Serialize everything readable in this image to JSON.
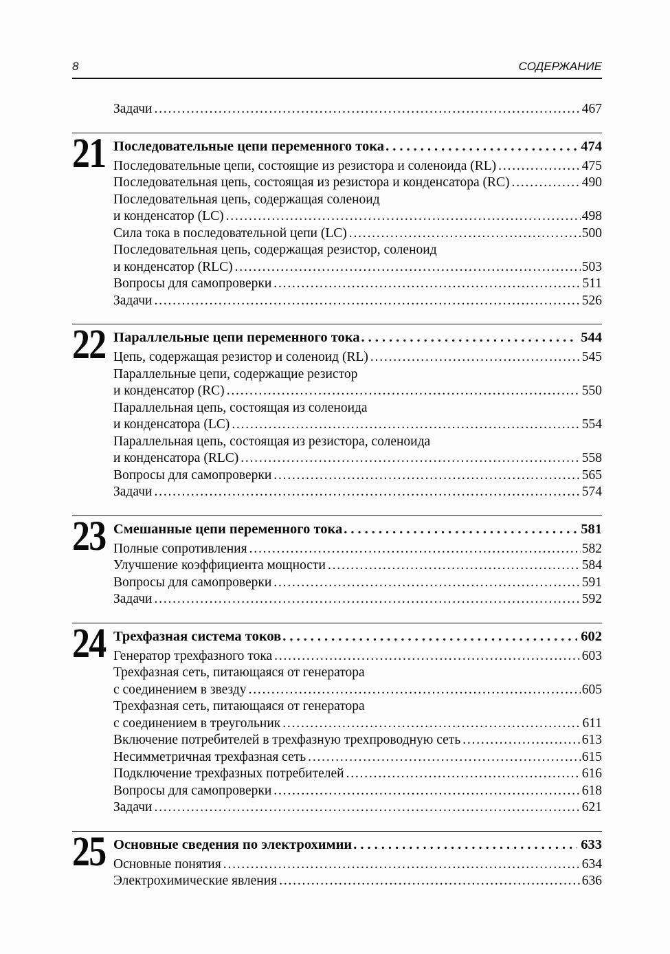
{
  "page_header": {
    "page_number": "8",
    "title": "СОДЕРЖАНИЕ"
  },
  "pre_section_entries": [
    {
      "lines": [
        "Задачи"
      ],
      "page": "467"
    }
  ],
  "sections": [
    {
      "number": "21",
      "title": "Последовательные цепи переменного тока",
      "page": "474",
      "entries": [
        {
          "lines": [
            "Последовательные цепи, состоящие из резистора и соленоида (RL)"
          ],
          "page": "475"
        },
        {
          "lines": [
            "Последовательная цепь, состоящая из резистора и конденсатора (RC)"
          ],
          "page": "490"
        },
        {
          "lines": [
            "Последовательная цепь, содержащая соленоид",
            "и конденсатор (LC)"
          ],
          "page": "498"
        },
        {
          "lines": [
            "Сила тока в последовательной цепи (LC)"
          ],
          "page": "500"
        },
        {
          "lines": [
            "Последовательная цепь, содержащая резистор, соленоид",
            "и конденсатор (RLC)"
          ],
          "page": "503"
        },
        {
          "lines": [
            "Вопросы для самопроверки"
          ],
          "page": "511"
        },
        {
          "lines": [
            "Задачи"
          ],
          "page": "526"
        }
      ]
    },
    {
      "number": "22",
      "title": "Параллельные цепи переменного тока",
      "page": "544",
      "entries": [
        {
          "lines": [
            "Цепь, содержащая резистор и соленоид (RL)"
          ],
          "page": "545"
        },
        {
          "lines": [
            "Параллельные цепи, содержащие резистор",
            "и конденсатор (RC)"
          ],
          "page": "550"
        },
        {
          "lines": [
            "Параллельная цепь, состоящая из соленоида",
            "и конденсатора (LC)"
          ],
          "page": "554"
        },
        {
          "lines": [
            "Параллельная цепь, состоящая из резистора, соленоида",
            "и конденсатора (RLC)"
          ],
          "page": "558"
        },
        {
          "lines": [
            "Вопросы для самопроверки"
          ],
          "page": "565"
        },
        {
          "lines": [
            "Задачи"
          ],
          "page": "574"
        }
      ]
    },
    {
      "number": "23",
      "title": "Смешанные цепи переменного тока",
      "page": "581",
      "entries": [
        {
          "lines": [
            "Полные сопротивления"
          ],
          "page": "582"
        },
        {
          "lines": [
            "Улучшение коэффициента мощности"
          ],
          "page": "584"
        },
        {
          "lines": [
            "Вопросы для самопроверки"
          ],
          "page": "591"
        },
        {
          "lines": [
            "Задачи"
          ],
          "page": "592"
        }
      ]
    },
    {
      "number": "24",
      "title": "Трехфазная система токов",
      "page": "602",
      "entries": [
        {
          "lines": [
            "Генератор трехфазного тока"
          ],
          "page": "603"
        },
        {
          "lines": [
            "Трехфазная сеть, питающаяся от генератора",
            "с соединением в звезду"
          ],
          "page": "605"
        },
        {
          "lines": [
            "Трехфазная сеть, питающаяся от генератора",
            "с соединением в треугольник"
          ],
          "page": "611"
        },
        {
          "lines": [
            "Включение потребителей в трехфазную трехпроводную сеть"
          ],
          "page": "613"
        },
        {
          "lines": [
            "Несимметричная трехфазная сеть"
          ],
          "page": "615"
        },
        {
          "lines": [
            "Подключение трехфазных потребителей"
          ],
          "page": "616"
        },
        {
          "lines": [
            "Вопросы для самопроверки"
          ],
          "page": "618"
        },
        {
          "lines": [
            "Задачи"
          ],
          "page": "621"
        }
      ]
    },
    {
      "number": "25",
      "title": "Основные сведения по электрохимии",
      "page": "633",
      "entries": [
        {
          "lines": [
            "Основные понятия"
          ],
          "page": "634"
        },
        {
          "lines": [
            "Электрохимические явления"
          ],
          "page": "636"
        }
      ]
    }
  ]
}
